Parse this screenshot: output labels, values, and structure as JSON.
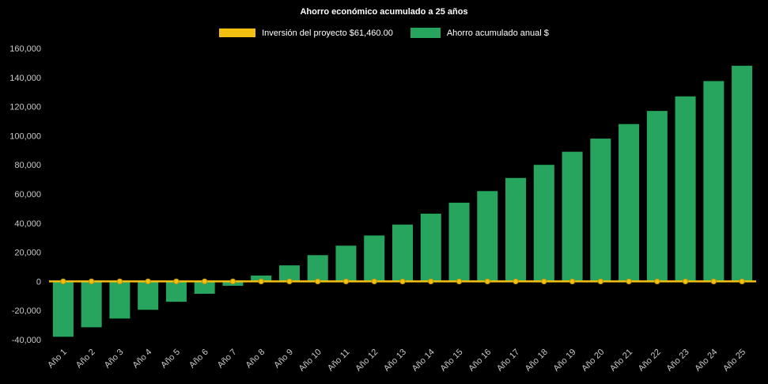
{
  "chart_data": {
    "type": "bar",
    "title": "Ahorro económico acumulado a 25 años",
    "categories": [
      "Año 1",
      "Año 2",
      "Año 3",
      "Año 4",
      "Año 5",
      "Año 6",
      "Año 7",
      "Año 8",
      "Año 9",
      "Año 10",
      "Año 11",
      "Año 12",
      "Año 13",
      "Año 14",
      "Año 15",
      "Año 16",
      "Año 17",
      "Año 18",
      "Año 19",
      "Año 20",
      "Año 21",
      "Año 22",
      "Año 23",
      "Año 24",
      "Año 25"
    ],
    "series": [
      {
        "name": "Inversión del proyecto $61,460.00",
        "type": "line",
        "color": "#f1c011",
        "marker_stroke": "#bb9308",
        "values": [
          0,
          0,
          0,
          0,
          0,
          0,
          0,
          0,
          0,
          0,
          0,
          0,
          0,
          0,
          0,
          0,
          0,
          0,
          0,
          0,
          0,
          0,
          0,
          0,
          0
        ]
      },
      {
        "name": "Ahorro acumulado anual $",
        "type": "bar",
        "color": "#27a55f",
        "values": [
          -38000,
          -31500,
          -25500,
          -19500,
          -14000,
          -8500,
          -3000,
          4000,
          11000,
          18000,
          24500,
          31500,
          39000,
          46500,
          54000,
          62000,
          71000,
          80000,
          89000,
          98000,
          108000,
          117000,
          127000,
          137500,
          148000
        ]
      }
    ],
    "ylim": [
      -40000,
      160000
    ],
    "yticks": [
      {
        "value": 160000,
        "label": "160,000"
      },
      {
        "value": 140000,
        "label": "140,000"
      },
      {
        "value": 120000,
        "label": "120,000"
      },
      {
        "value": 100000,
        "label": "100,000"
      },
      {
        "value": 80000,
        "label": "80,000"
      },
      {
        "value": 60000,
        "label": "60,000"
      },
      {
        "value": 40000,
        "label": "40,000"
      },
      {
        "value": 20000,
        "label": "20,000"
      },
      {
        "value": 0,
        "label": "0"
      },
      {
        "value": -20000,
        "label": "-20,000"
      },
      {
        "value": -40000,
        "label": "-40,000"
      }
    ],
    "legend_position": "top",
    "grid": false,
    "background": "#000000",
    "text_color": "#c9c9c9"
  }
}
